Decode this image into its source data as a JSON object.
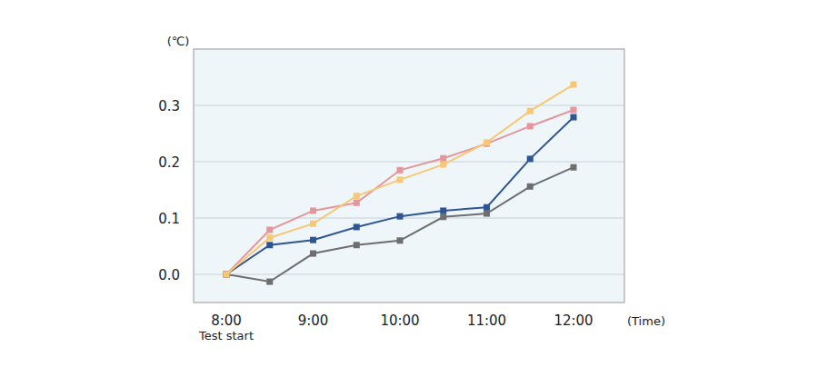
{
  "chart_data": {
    "type": "line",
    "y_label": "(℃)",
    "x_label": "(Time)",
    "annotation": "Test start",
    "categories": [
      "8:00",
      null,
      "9:00",
      null,
      "10:00",
      null,
      "11:00",
      null,
      "12:00"
    ],
    "series": [
      {
        "color": "#6e6e6e",
        "values": [
          0,
          -0.013,
          0.037,
          0.052,
          0.06,
          0.102,
          0.108,
          0.156,
          0.19
        ]
      },
      {
        "color": "#2f5592",
        "values": [
          0,
          0.052,
          0.061,
          0.084,
          0.103,
          0.113,
          0.119,
          0.205,
          0.279
        ]
      },
      {
        "color": "#e5969a",
        "values": [
          0,
          0.079,
          0.113,
          0.127,
          0.185,
          0.206,
          0.232,
          0.263,
          0.292
        ]
      },
      {
        "color": "#f8c774",
        "values": [
          0,
          0.065,
          0.09,
          0.139,
          0.168,
          0.195,
          0.234,
          0.29,
          0.337
        ]
      }
    ],
    "ylim": [
      -0.05,
      0.4
    ],
    "yticks": [
      {
        "value": 0,
        "label": "0.0"
      },
      0.1,
      0.2,
      0.3
    ],
    "grid": true,
    "marker": "square"
  }
}
